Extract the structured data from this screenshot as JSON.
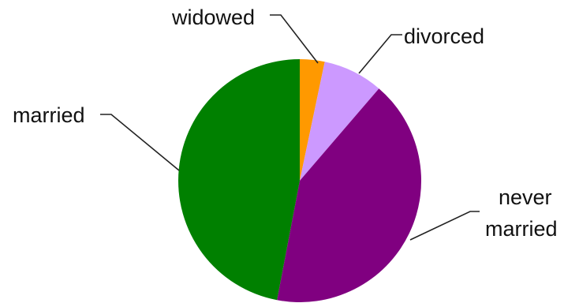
{
  "chart_data": {
    "type": "pie",
    "title": "",
    "slices": [
      {
        "label": "widowed",
        "value": 3.3,
        "color": "#ff9900"
      },
      {
        "label": "divorced",
        "value": 8.0,
        "color": "#cc99ff"
      },
      {
        "label": "never married",
        "label_lines": [
          "never",
          "married"
        ],
        "value": 41.7,
        "color": "#800080"
      },
      {
        "label": "married",
        "value": 47.0,
        "color": "#008000"
      }
    ],
    "start_angle": "12 o'clock",
    "direction": "clockwise",
    "legend": "none",
    "labels": "outside with leader lines"
  }
}
